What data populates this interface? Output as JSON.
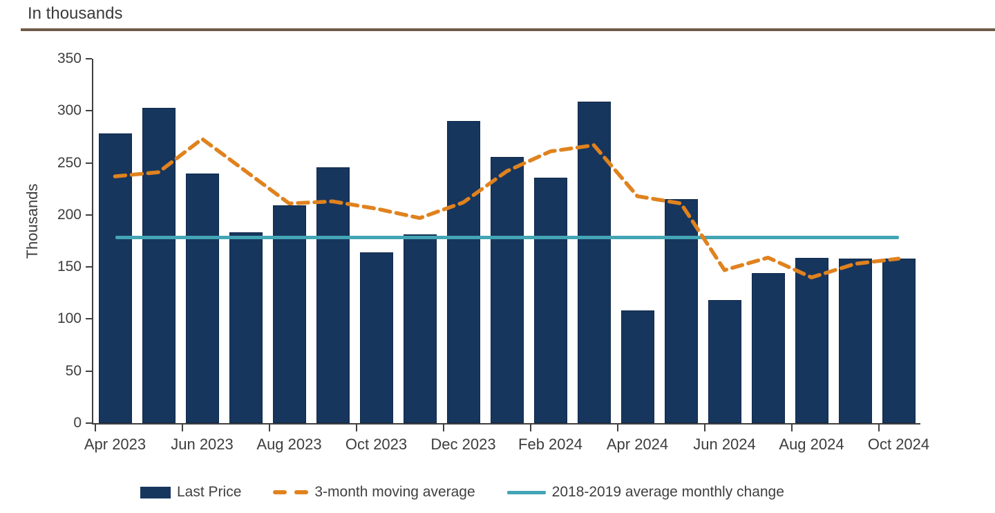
{
  "header": {
    "subtitle": "In thousands",
    "rule_color": "#6e5a47"
  },
  "chart_data": {
    "type": "bar",
    "title": "In thousands",
    "ylabel": "Thousands",
    "ylim": [
      0,
      350
    ],
    "yticks": [
      0,
      50,
      100,
      150,
      200,
      250,
      300,
      350
    ],
    "grid": "off",
    "legend_position": "bottom",
    "categories": [
      "Apr 2023",
      "May 2023",
      "Jun 2023",
      "Jul 2023",
      "Aug 2023",
      "Sep 2023",
      "Oct 2023",
      "Nov 2023",
      "Dec 2023",
      "Jan 2024",
      "Feb 2024",
      "Mar 2024",
      "Apr 2024",
      "May 2024",
      "Jun 2024",
      "Jul 2024",
      "Aug 2024",
      "Sep 2024",
      "Oct 2024"
    ],
    "x_tick_labels": [
      "Apr 2023",
      "Jun 2023",
      "Aug 2023",
      "Oct 2023",
      "Dec 2023",
      "Feb 2024",
      "Apr 2024",
      "Jun 2024",
      "Aug 2024",
      "Oct 2024"
    ],
    "series": [
      {
        "name": "Last Price",
        "type": "bar",
        "color": "#17365d",
        "values": [
          278,
          303,
          240,
          183,
          209,
          246,
          164,
          181,
          290,
          256,
          236,
          309,
          108,
          215,
          118,
          144,
          159,
          158,
          158
        ]
      },
      {
        "name": "3-month moving average",
        "type": "line",
        "style": "dashed",
        "color": "#e0821e",
        "values": [
          237,
          241,
          273,
          242,
          211,
          213,
          206,
          197,
          212,
          242,
          261,
          267,
          218,
          211,
          147,
          159,
          140,
          153,
          158
        ]
      },
      {
        "name": "2018-2019 average monthly change",
        "type": "reference-line",
        "color": "#43a5b5",
        "value": 178
      }
    ]
  }
}
